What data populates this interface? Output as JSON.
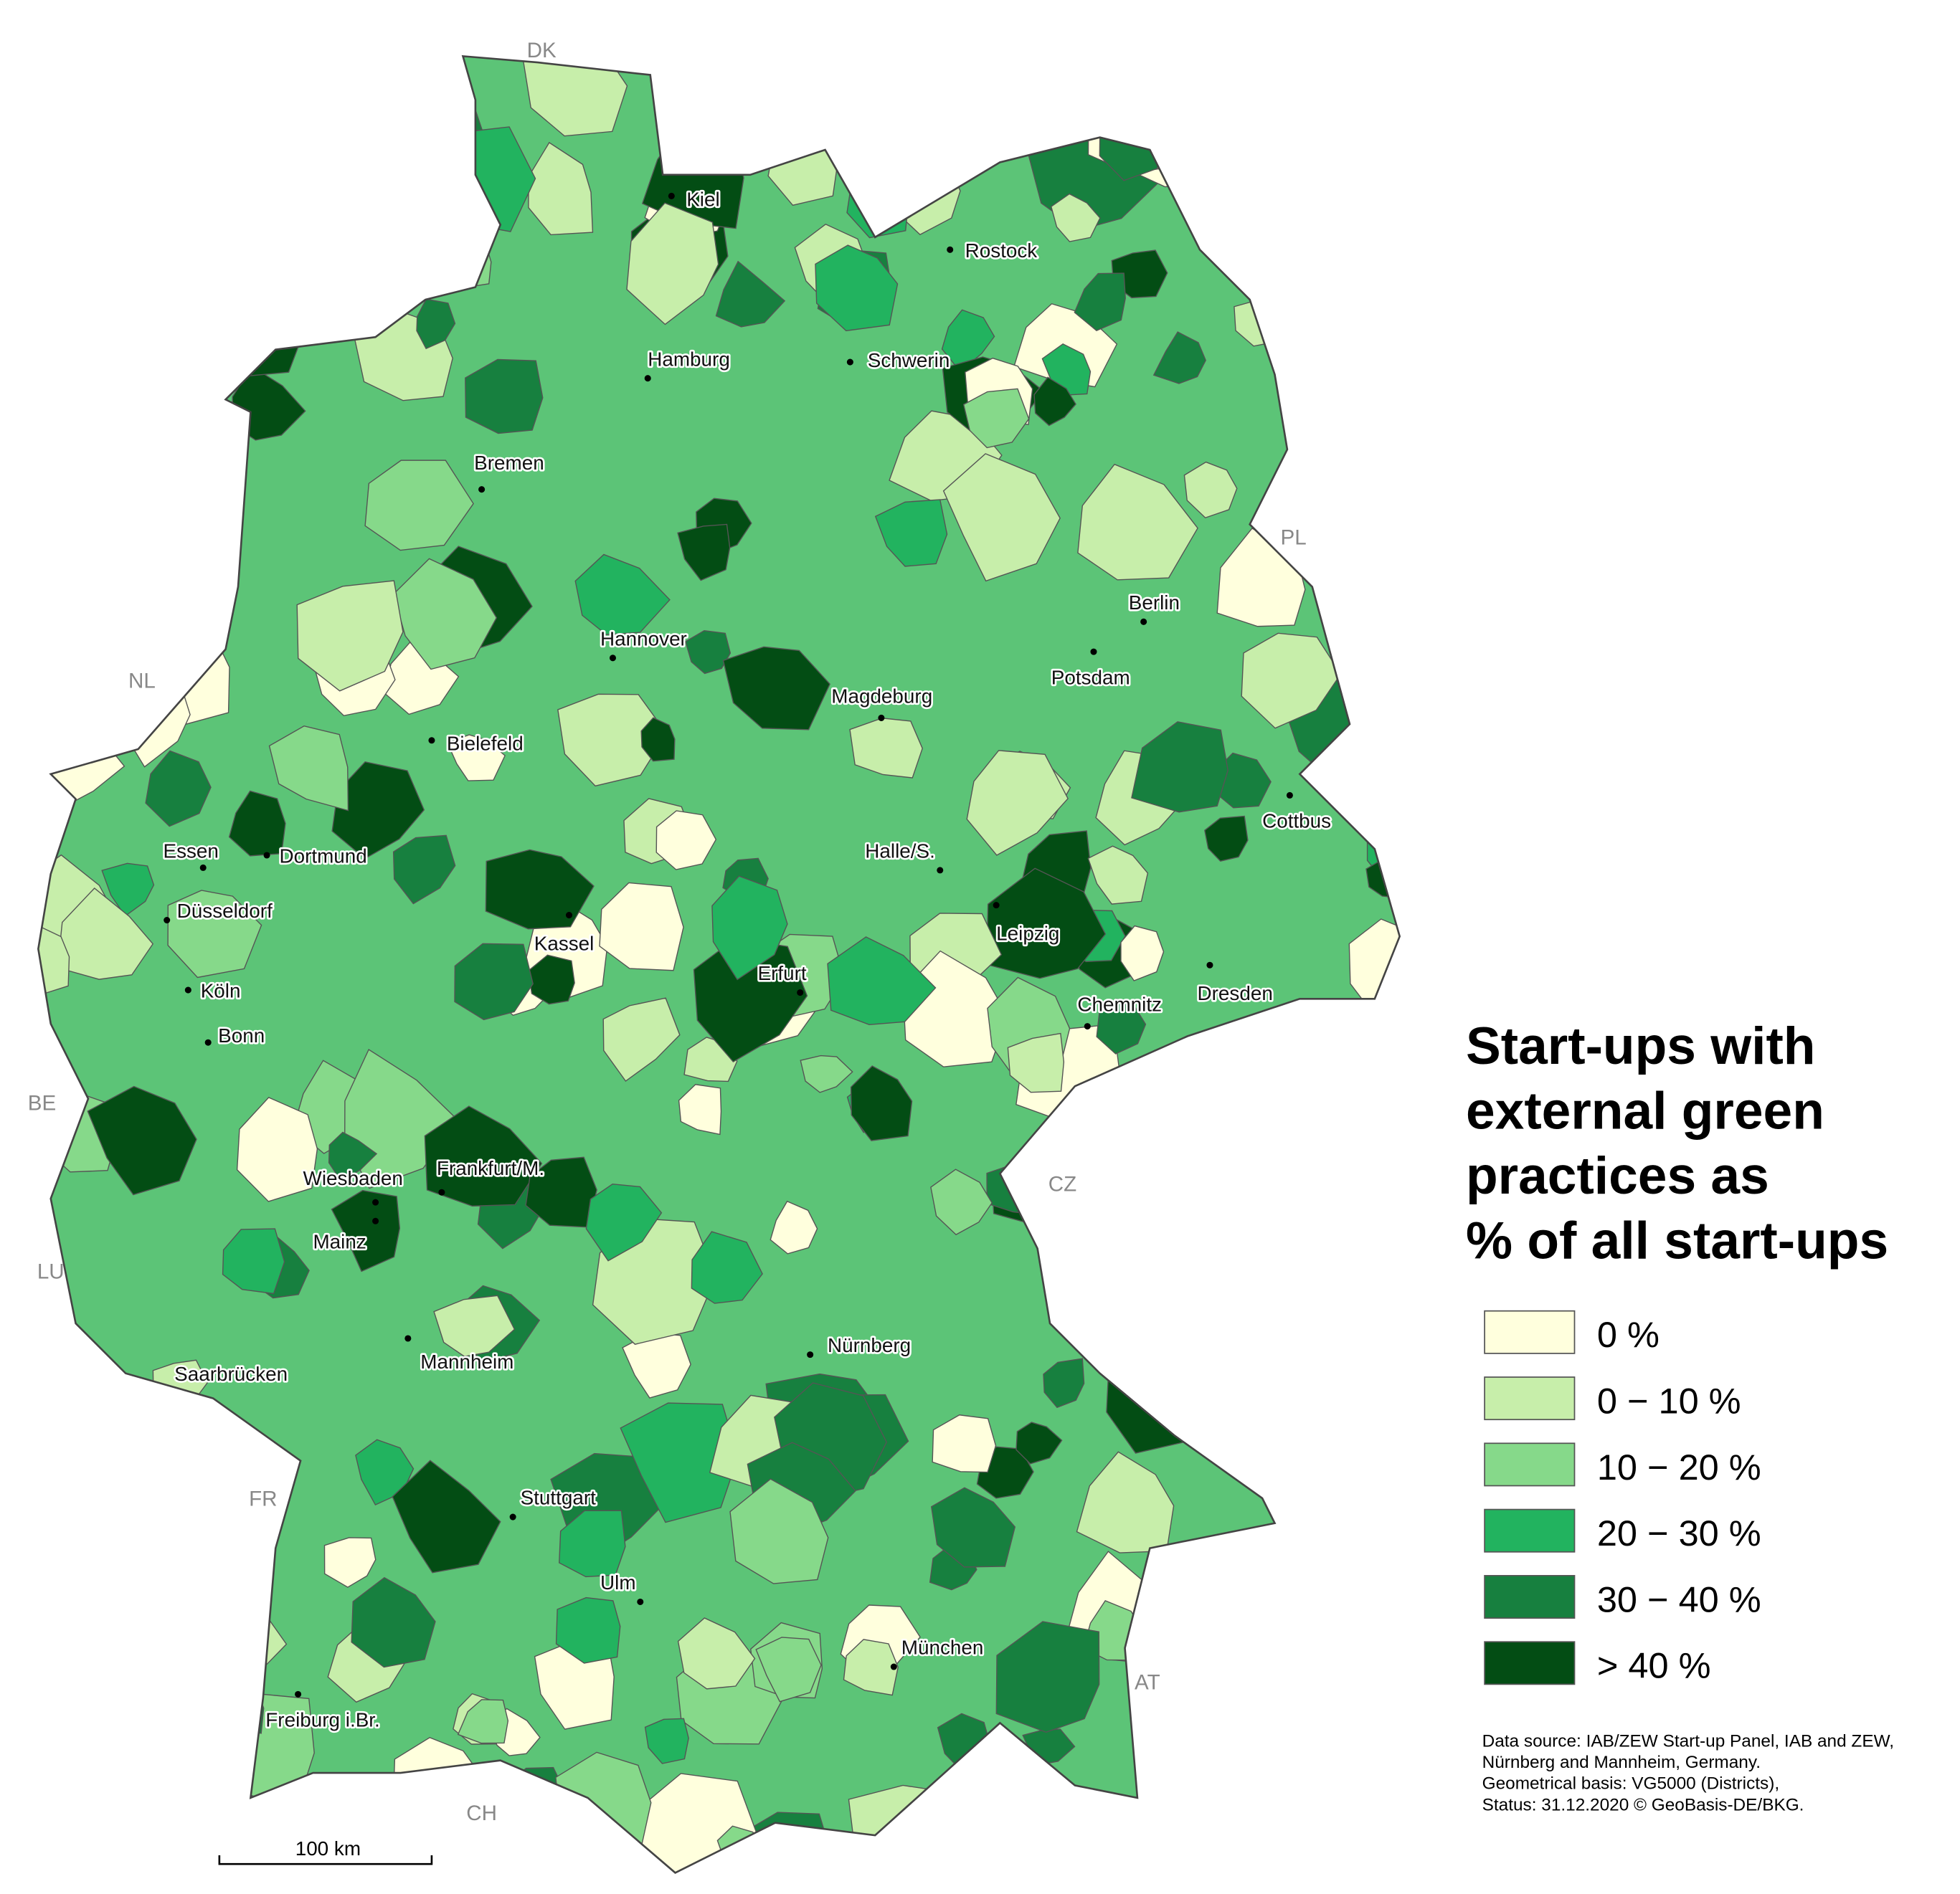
{
  "map": {
    "cities": [
      "Kiel",
      "Rostock",
      "Hamburg",
      "Schwerin",
      "Bremen",
      "Berlin",
      "Potsdam",
      "Hannover",
      "Magdeburg",
      "Bielefeld",
      "Cottbus",
      "Essen",
      "Dortmund",
      "Halle/S.",
      "Düsseldorf",
      "Leipzig",
      "Kassel",
      "Köln",
      "Erfurt",
      "Dresden",
      "Chemnitz",
      "Bonn",
      "Wiesbaden",
      "Frankfurt/M.",
      "Mainz",
      "Nürnberg",
      "Mannheim",
      "Saarbrücken",
      "Stuttgart",
      "Ulm",
      "München",
      "Freiburg i.Br."
    ],
    "countries": [
      "DK",
      "PL",
      "NL",
      "BE",
      "CZ",
      "LU",
      "FR",
      "AT",
      "CH"
    ],
    "scale_bar": "100 km"
  },
  "legend": {
    "title": [
      "Start-ups with",
      "external green",
      "practices as",
      "% of all start-ups"
    ],
    "items": [
      {
        "label": "0 %",
        "color": "#ffffdd"
      },
      {
        "label": "0 − 10 %",
        "color": "#c7eeaa"
      },
      {
        "label": "10 − 20 %",
        "color": "#86d98a"
      },
      {
        "label": "20 − 30 %",
        "color": "#22b35f"
      },
      {
        "label": "30 − 40 %",
        "color": "#17803f"
      },
      {
        "label": "> 40 %",
        "color": "#034d14"
      }
    ]
  },
  "source": [
    "Data source: IAB/ZEW Start-up Panel, IAB and ZEW,",
    "Nürnberg and Mannheim, Germany.",
    "Geometrical basis: VG5000 (Districts),",
    "Status: 31.12.2020 © GeoBasis-DE/BKG."
  ]
}
